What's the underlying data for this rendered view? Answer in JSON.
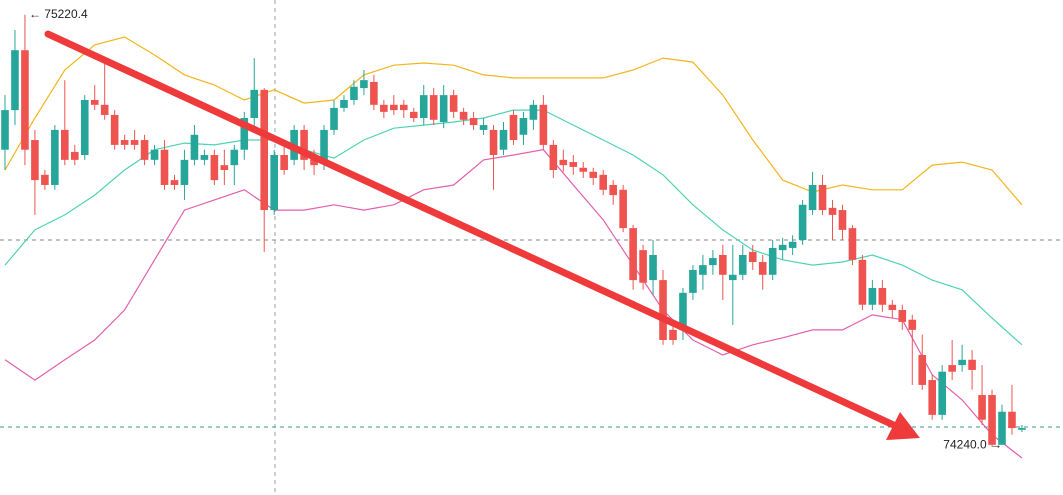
{
  "chart_data": {
    "type": "candlestick",
    "ylim": [
      74130,
      75254
    ],
    "up_color": "#26a69a",
    "down_color": "#ef5350",
    "high_label": "← 75220.4",
    "low_label": "74240.0 →",
    "ohlc": [
      [
        74914,
        75038,
        74868,
        75004
      ],
      [
        75004,
        75186,
        74970,
        75140
      ],
      [
        75140,
        75220.4,
        74879,
        74914
      ],
      [
        74936,
        74959,
        74766,
        74845
      ],
      [
        74857,
        74868,
        74823,
        74834
      ],
      [
        74834,
        74970,
        74823,
        74959
      ],
      [
        74959,
        75072,
        74879,
        74891
      ],
      [
        74909,
        74925,
        74879,
        74891
      ],
      [
        74902,
        75038,
        74891,
        75027
      ],
      [
        75027,
        75061,
        75004,
        75016
      ],
      [
        75016,
        75118,
        74982,
        74993
      ],
      [
        74993,
        75004,
        74914,
        74925
      ],
      [
        74936,
        74948,
        74914,
        74925
      ],
      [
        74936,
        74959,
        74914,
        74925
      ],
      [
        74936,
        74948,
        74879,
        74891
      ],
      [
        74891,
        74925,
        74879,
        74914
      ],
      [
        74914,
        74936,
        74823,
        74834
      ],
      [
        74845,
        74857,
        74823,
        74834
      ],
      [
        74834,
        74914,
        74800,
        74891
      ],
      [
        74891,
        74970,
        74879,
        74948
      ],
      [
        74891,
        74914,
        74879,
        74902
      ],
      [
        74902,
        74914,
        74834,
        74845
      ],
      [
        74879,
        74914,
        74834,
        74868
      ],
      [
        74879,
        74925,
        74834,
        74914
      ],
      [
        74914,
        75000,
        74891,
        74986
      ],
      [
        74986,
        75122,
        74959,
        75050
      ],
      [
        75050,
        75054,
        74682,
        74777
      ],
      [
        74777,
        74914,
        74766,
        74902
      ],
      [
        74902,
        74925,
        74857,
        74868
      ],
      [
        74891,
        74970,
        74879,
        74959
      ],
      [
        74959,
        74970,
        74868,
        74891
      ],
      [
        74902,
        74914,
        74857,
        74879
      ],
      [
        74891,
        74970,
        74868,
        74959
      ],
      [
        74959,
        75027,
        74948,
        75009
      ],
      [
        75009,
        75038,
        75000,
        75027
      ],
      [
        75027,
        75072,
        75016,
        75057
      ],
      [
        75054,
        75095,
        75038,
        75072
      ],
      [
        75068,
        75084,
        75004,
        75016
      ],
      [
        75016,
        75027,
        74986,
        75000
      ],
      [
        75016,
        75038,
        74993,
        75004
      ],
      [
        75016,
        75027,
        74986,
        75004
      ],
      [
        75000,
        75009,
        74977,
        74986
      ],
      [
        74986,
        75061,
        74970,
        75038
      ],
      [
        75038,
        75054,
        74970,
        74982
      ],
      [
        74977,
        75061,
        74963,
        75038
      ],
      [
        75038,
        75050,
        74986,
        75000
      ],
      [
        75000,
        75009,
        74970,
        74982
      ],
      [
        74986,
        75000,
        74959,
        74970
      ],
      [
        74959,
        74986,
        74948,
        74970
      ],
      [
        74959,
        74970,
        74823,
        74902
      ],
      [
        74914,
        74977,
        74902,
        74959
      ],
      [
        74993,
        75004,
        74925,
        74936
      ],
      [
        74948,
        75000,
        74925,
        74986
      ],
      [
        74982,
        75027,
        74959,
        75016
      ],
      [
        75016,
        75038,
        74914,
        74925
      ],
      [
        74925,
        74936,
        74850,
        74868
      ],
      [
        74891,
        74914,
        74864,
        74879
      ],
      [
        74886,
        74902,
        74857,
        74875
      ],
      [
        74873,
        74886,
        74850,
        74864
      ],
      [
        74864,
        74873,
        74834,
        74850
      ],
      [
        74857,
        74868,
        74811,
        74823
      ],
      [
        74834,
        74845,
        74789,
        74811
      ],
      [
        74823,
        74834,
        74727,
        74736
      ],
      [
        74736,
        74743,
        74596,
        74618
      ],
      [
        74686,
        74698,
        74596,
        74612
      ],
      [
        74618,
        74709,
        74584,
        74675
      ],
      [
        74618,
        74641,
        74471,
        74482
      ],
      [
        74505,
        74516,
        74471,
        74482
      ],
      [
        74505,
        74600,
        74482,
        74589
      ],
      [
        74589,
        74652,
        74573,
        74641
      ],
      [
        74630,
        74675,
        74596,
        74652
      ],
      [
        74652,
        74686,
        74630,
        74668
      ],
      [
        74675,
        74698,
        74573,
        74630
      ],
      [
        74618,
        74698,
        74516,
        74630
      ],
      [
        74630,
        74698,
        74618,
        74675
      ],
      [
        74682,
        74698,
        74641,
        74659
      ],
      [
        74659,
        74675,
        74596,
        74630
      ],
      [
        74630,
        74709,
        74618,
        74691
      ],
      [
        74686,
        74714,
        74664,
        74698
      ],
      [
        74691,
        74720,
        74675,
        74705
      ],
      [
        74709,
        74800,
        74698,
        74789
      ],
      [
        74777,
        74864,
        74766,
        74834
      ],
      [
        74834,
        74857,
        74766,
        74777
      ],
      [
        74782,
        74800,
        74709,
        74766
      ],
      [
        74777,
        74789,
        74709,
        74732
      ],
      [
        74736,
        74743,
        74652,
        74664
      ],
      [
        74664,
        74675,
        74550,
        74562
      ],
      [
        74562,
        74618,
        74550,
        74600
      ],
      [
        74600,
        74618,
        74546,
        74562
      ],
      [
        74562,
        74573,
        74532,
        74550
      ],
      [
        74550,
        74562,
        74505,
        74523
      ],
      [
        74528,
        74539,
        74380,
        74505
      ],
      [
        74448,
        74494,
        74369,
        74380
      ],
      [
        74391,
        74403,
        74301,
        74312
      ],
      [
        74312,
        74425,
        74301,
        74410
      ],
      [
        74425,
        74482,
        74391,
        74410
      ],
      [
        74425,
        74471,
        74410,
        74437
      ],
      [
        74437,
        74459,
        74369,
        74414
      ],
      [
        74357,
        74425,
        74289,
        74301
      ],
      [
        74357,
        74369,
        74240,
        74244
      ],
      [
        74244,
        74335,
        74244,
        74319
      ],
      [
        74319,
        74380,
        74267,
        74282
      ],
      [
        74278,
        74289,
        74273,
        74282
      ]
    ],
    "band_x": [
      0,
      3,
      6,
      9,
      12,
      15,
      18,
      21,
      24,
      27,
      30,
      33,
      36,
      39,
      42,
      45,
      48,
      51,
      54,
      57,
      60,
      63,
      66,
      69,
      72,
      75,
      78,
      81,
      84,
      87,
      90,
      93,
      96,
      99,
      102
    ],
    "bands": [
      {
        "color": "#f2b51c",
        "values": [
          74868,
          74986,
          75095,
          75152,
          75170,
          75129,
          75084,
          75061,
          75027,
          75050,
          75020,
          75027,
          75084,
          75106,
          75111,
          75106,
          75084,
          75077,
          75077,
          75077,
          75077,
          75095,
          75122,
          75113,
          75038,
          74936,
          74845,
          74818,
          74834,
          74823,
          74823,
          74879,
          74886,
          74868,
          74789
        ]
      },
      {
        "color": "#4fd3b3",
        "values": [
          74652,
          74732,
          74766,
          74811,
          74868,
          74914,
          74929,
          74925,
          74936,
          74936,
          74914,
          74895,
          74936,
          74963,
          74970,
          74977,
          74986,
          75004,
          75004,
          74970,
          74936,
          74902,
          74857,
          74789,
          74732,
          74686,
          74664,
          74652,
          74659,
          74675,
          74652,
          74618,
          74596,
          74532,
          74471
        ]
      },
      {
        "color": "#e35fae",
        "values": [
          74437,
          74391,
          74437,
          74482,
          74550,
          74664,
          74777,
          74800,
          74823,
          74777,
          74777,
          74789,
          74777,
          74789,
          74823,
          74834,
          74891,
          74902,
          74914,
          74834,
          74755,
          74652,
          74550,
          74482,
          74448,
          74471,
          74487,
          74505,
          74505,
          74539,
          74528,
          74403,
          74346,
          74267,
          74214
        ]
      }
    ]
  }
}
